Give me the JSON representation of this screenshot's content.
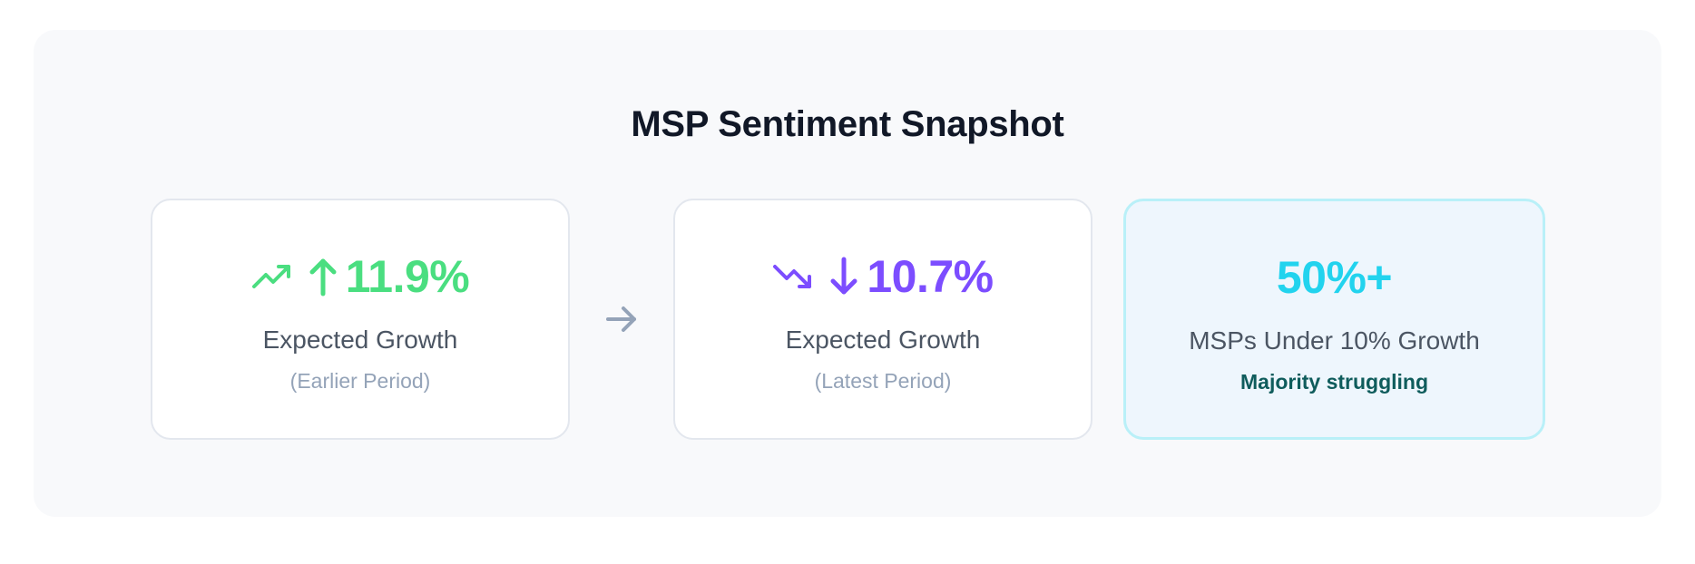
{
  "title": "MSP Sentiment Snapshot",
  "colors": {
    "title": "#111827",
    "growth_up": "#4ade80",
    "growth_down": "#7c4dff",
    "highlight": "#22d3ee",
    "highlight_bg": "#eef6fd",
    "highlight_border": "#b9f0f8",
    "note": "#0f5c5c",
    "connector": "#94a3b8"
  },
  "cards": [
    {
      "trend_icon": "trending-up-icon",
      "arrow_icon": "arrow-up-icon",
      "value": "11.9%",
      "label": "Expected Growth",
      "sublabel": "(Earlier Period)"
    },
    {
      "trend_icon": "trending-down-icon",
      "arrow_icon": "arrow-down-icon",
      "value": "10.7%",
      "label": "Expected Growth",
      "sublabel": "(Latest Period)"
    },
    {
      "value": "50%+",
      "label": "MSPs Under 10% Growth",
      "note": "Majority struggling"
    }
  ],
  "connector_icon": "arrow-right-icon"
}
